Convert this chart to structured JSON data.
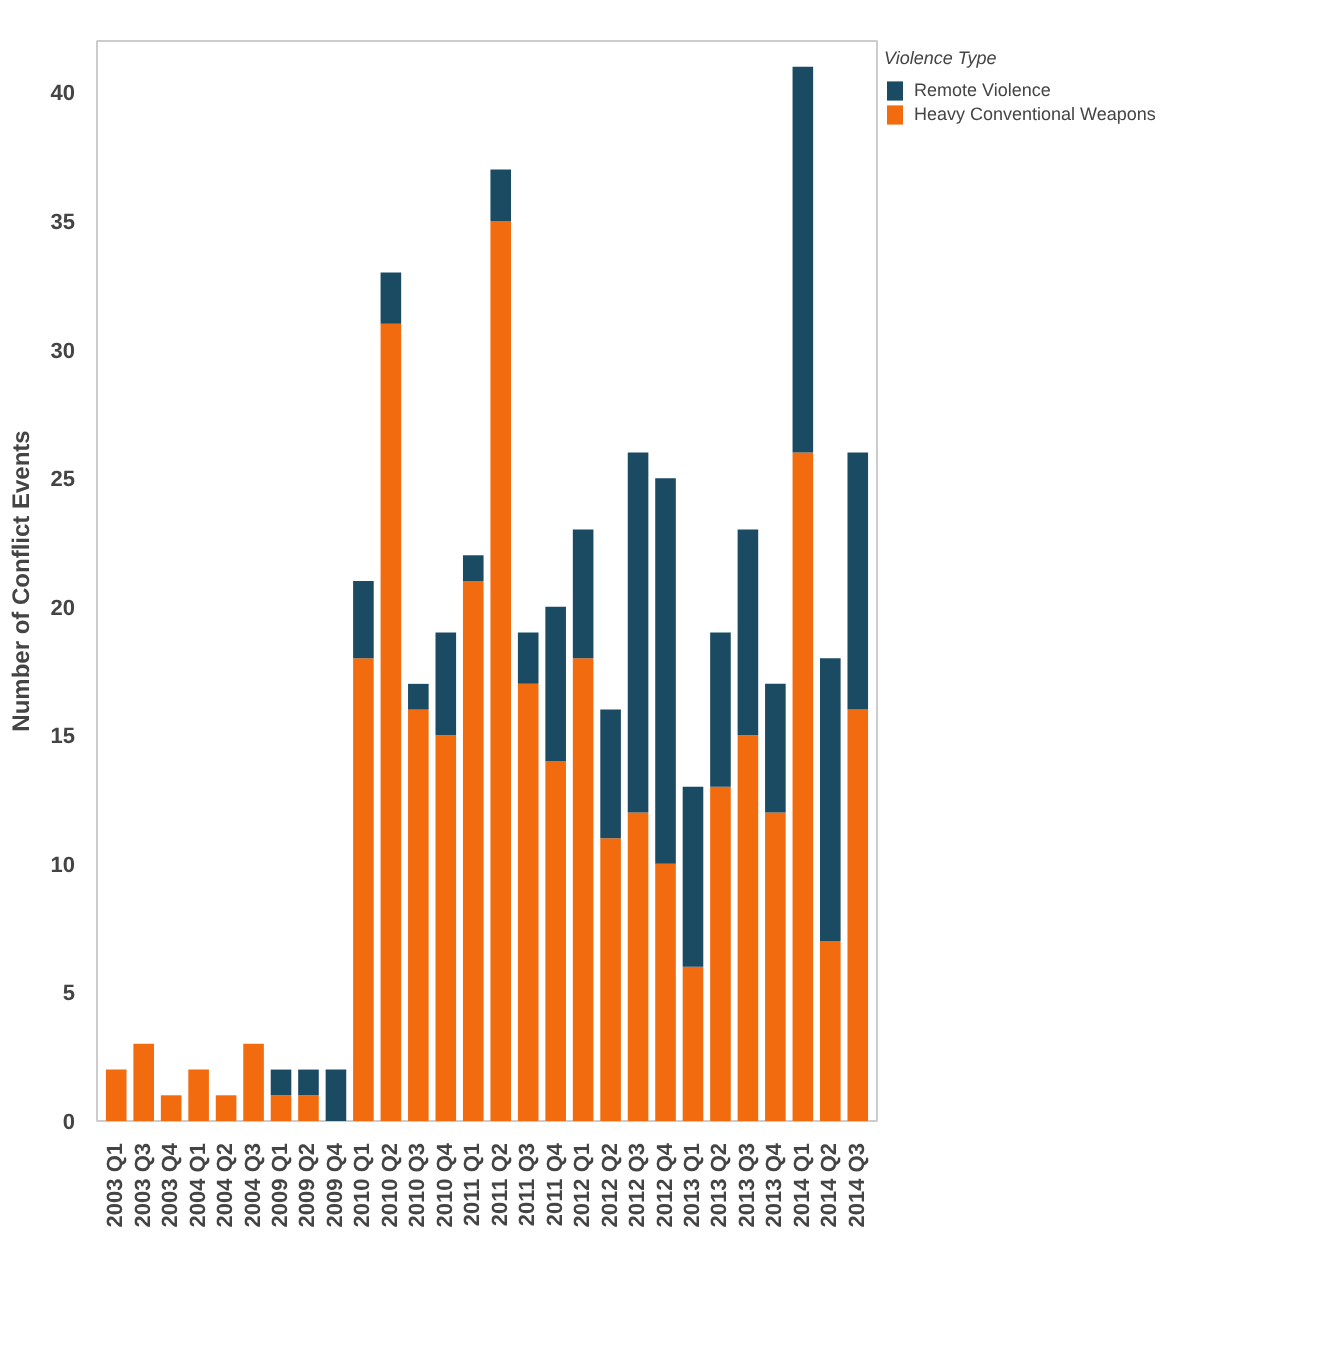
{
  "chart_data": {
    "type": "bar",
    "stacked": true,
    "ylabel": "Number of Conflict Events",
    "legend_title": "Violence Type",
    "legend": "top right",
    "categories": [
      "2003 Q1",
      "2003 Q3",
      "2003 Q4",
      "2004 Q1",
      "2004 Q2",
      "2004 Q3",
      "2009 Q1",
      "2009 Q2",
      "2009 Q4",
      "2010 Q1",
      "2010 Q2",
      "2010 Q3",
      "2010 Q4",
      "2011 Q1",
      "2011 Q2",
      "2011 Q3",
      "2011 Q4",
      "2012 Q1",
      "2012 Q2",
      "2012 Q3",
      "2012 Q4",
      "2013 Q1",
      "2013 Q2",
      "2013 Q3",
      "2013 Q4",
      "2014 Q1",
      "2014 Q2",
      "2014 Q3"
    ],
    "ylim": [
      0,
      42
    ],
    "yticks": [
      0,
      5,
      10,
      15,
      20,
      25,
      30,
      35,
      40
    ],
    "grid": false,
    "series": [
      {
        "name": "Heavy Conventional Weapons",
        "color": "#f26b0f",
        "values": [
          2,
          3,
          1,
          2,
          1,
          3,
          1,
          1,
          0,
          18,
          31,
          16,
          15,
          21,
          35,
          17,
          14,
          18,
          11,
          12,
          10,
          6,
          13,
          15,
          12,
          26,
          7,
          16
        ]
      },
      {
        "name": "Remote Violence",
        "color": "#1b4a63",
        "values": [
          0,
          0,
          0,
          0,
          0,
          0,
          1,
          1,
          2,
          3,
          2,
          1,
          4,
          1,
          2,
          2,
          6,
          5,
          5,
          14,
          15,
          7,
          6,
          8,
          5,
          15,
          11,
          10
        ]
      }
    ]
  }
}
